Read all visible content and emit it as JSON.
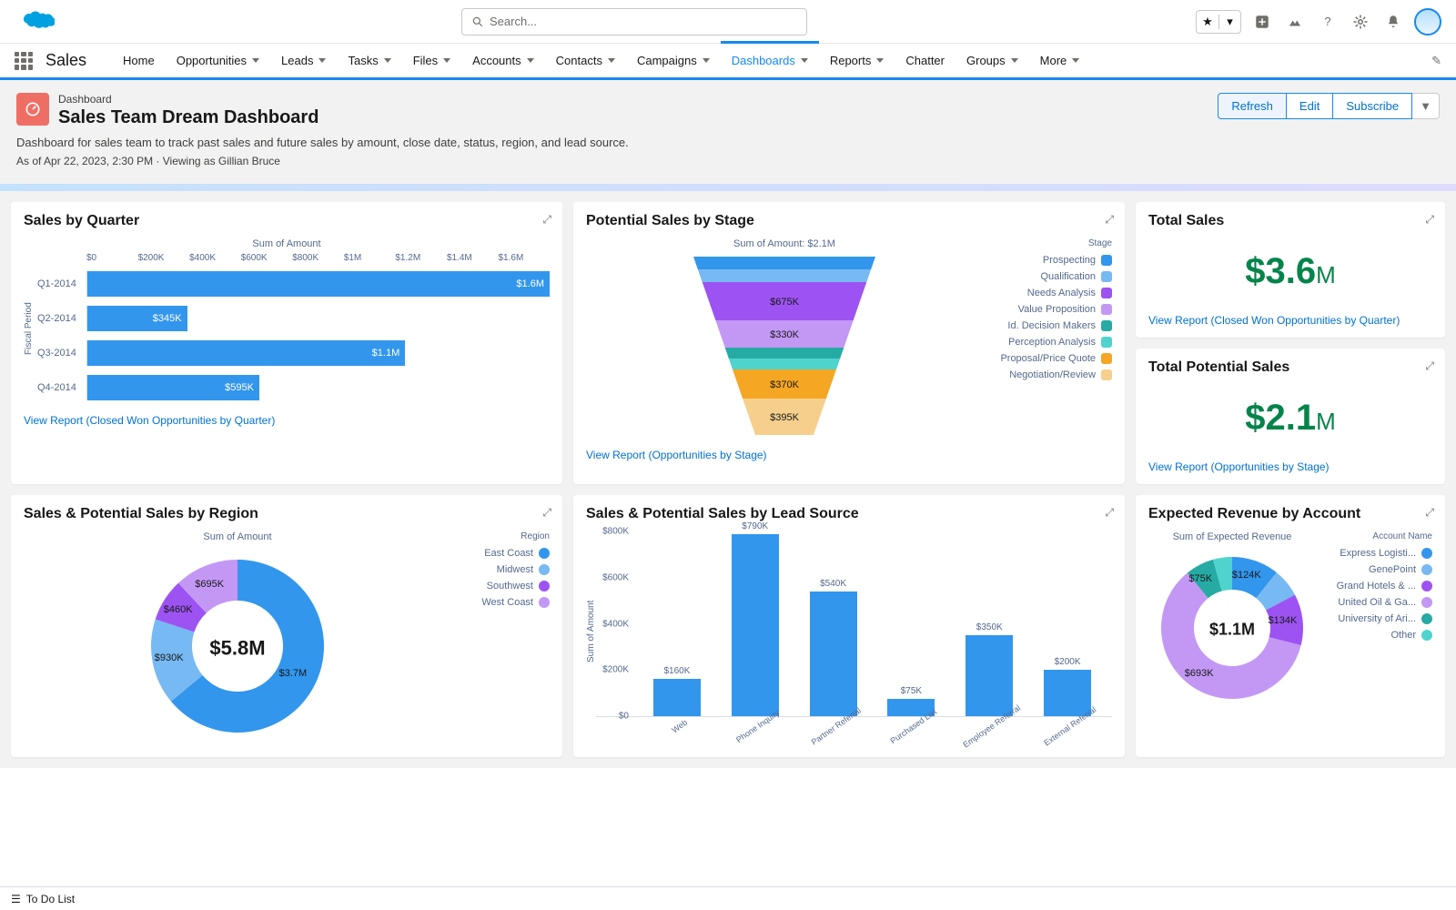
{
  "search_placeholder": "Search...",
  "app_name": "Sales",
  "nav": {
    "items": [
      "Home",
      "Opportunities",
      "Leads",
      "Tasks",
      "Files",
      "Accounts",
      "Contacts",
      "Campaigns",
      "Dashboards",
      "Reports",
      "Chatter",
      "Groups",
      "More"
    ],
    "has_chevron": [
      false,
      true,
      true,
      true,
      true,
      true,
      true,
      true,
      true,
      true,
      false,
      true,
      true
    ],
    "active_index": 8
  },
  "page": {
    "label": "Dashboard",
    "title": "Sales Team Dream Dashboard",
    "description": "Dashboard for sales team to track past sales and future sales by amount, close date, status, region, and lead source.",
    "meta": "As of Apr 22, 2023, 2:30 PM · Viewing as Gillian Bruce",
    "actions": [
      "Refresh",
      "Edit",
      "Subscribe"
    ]
  },
  "colors": {
    "brand_blue": "#1589ee",
    "link": "#0070d2",
    "green": "#04844b",
    "header_bg": "#f3f2f2",
    "icon_bg": "#ef6e64"
  },
  "card1": {
    "title": "Sales by Quarter",
    "axis_title": "Sum of Amount",
    "y_axis_label": "Fiscal Period",
    "view_report": "View Report (Closed Won Opportunities by Quarter)",
    "xticks": [
      "$0",
      "$200K",
      "$400K",
      "$600K",
      "$800K",
      "$1M",
      "$1.2M",
      "$1.4M",
      "$1.6M"
    ],
    "xmax": 1600,
    "bar_color": "#3296ed",
    "bars": [
      {
        "cat": "Q1-2014",
        "val": 1600,
        "label": "$1.6M"
      },
      {
        "cat": "Q2-2014",
        "val": 345,
        "label": "$345K"
      },
      {
        "cat": "Q3-2014",
        "val": 1100,
        "label": "$1.1M"
      },
      {
        "cat": "Q4-2014",
        "val": 595,
        "label": "$595K"
      }
    ]
  },
  "card2": {
    "title": "Potential Sales by Stage",
    "subtitle": "Sum of Amount: $2.1M",
    "view_report": "View Report (Opportunities by Stage)",
    "legend_title": "Stage",
    "segments": [
      {
        "label": "Prospecting",
        "color": "#3296ed",
        "value": ""
      },
      {
        "label": "Qualification",
        "color": "#77b9f2",
        "value": ""
      },
      {
        "label": "Needs Analysis",
        "color": "#9d53f2",
        "value": "$675K"
      },
      {
        "label": "Value Proposition",
        "color": "#c398f5",
        "value": "$330K"
      },
      {
        "label": "Id. Decision Makers",
        "color": "#26aba4",
        "value": ""
      },
      {
        "label": "Perception Analysis",
        "color": "#4ed4cd",
        "value": ""
      },
      {
        "label": "Proposal/Price Quote",
        "color": "#f5a623",
        "value": "$370K"
      },
      {
        "label": "Negotiation/Review",
        "color": "#f6cf8c",
        "value": "$395K"
      }
    ]
  },
  "card3": {
    "title": "Total Sales",
    "value": "$3.6",
    "suffix": "M",
    "view_report": "View Report (Closed Won Opportunities by Quarter)"
  },
  "card4": {
    "title": "Total Potential Sales",
    "value": "$2.1",
    "suffix": "M",
    "view_report": "View Report (Opportunities by Stage)"
  },
  "card5": {
    "title": "Sales & Potential Sales by Region",
    "subtitle": "Sum of Amount",
    "legend_title": "Region",
    "center": "$5.8M",
    "segments": [
      {
        "label": "East Coast",
        "color": "#3296ed",
        "value": 3700,
        "display": "$3.7M"
      },
      {
        "label": "Midwest",
        "color": "#77b9f2",
        "value": 930,
        "display": "$930K"
      },
      {
        "label": "Southwest",
        "color": "#9d53f2",
        "value": 460,
        "display": "$460K"
      },
      {
        "label": "West Coast",
        "color": "#c398f5",
        "value": 695,
        "display": "$695K"
      }
    ]
  },
  "card6": {
    "title": "Sales & Potential Sales by Lead Source",
    "y_axis_label": "Sum of Amount",
    "bar_color": "#3296ed",
    "yticks": [
      "$0",
      "$200K",
      "$400K",
      "$600K",
      "$800K"
    ],
    "ymax": 800,
    "bars": [
      {
        "cat": "Web",
        "val": 160,
        "label": "$160K"
      },
      {
        "cat": "Phone Inquiry",
        "val": 790,
        "label": "$790K"
      },
      {
        "cat": "Partner Referral",
        "val": 540,
        "label": "$540K"
      },
      {
        "cat": "Purchased List",
        "val": 75,
        "label": "$75K"
      },
      {
        "cat": "Employee Referral",
        "val": 350,
        "label": "$350K"
      },
      {
        "cat": "External Referral",
        "val": 200,
        "label": "$200K"
      }
    ]
  },
  "card7": {
    "title": "Expected Revenue by Account",
    "subtitle": "Sum of Expected Revenue",
    "legend_title": "Account Name",
    "center": "$1.1M",
    "segments": [
      {
        "label": "Express Logisti...",
        "color": "#3296ed",
        "value": 124,
        "display": "$124K"
      },
      {
        "label": "GenePoint",
        "color": "#77b9f2",
        "value": 75,
        "display": ""
      },
      {
        "label": "Grand Hotels & ...",
        "color": "#9d53f2",
        "value": 134,
        "display": "$134K"
      },
      {
        "label": "United Oil & Ga...",
        "color": "#c398f5",
        "value": 693,
        "display": "$693K"
      },
      {
        "label": "University of Ari...",
        "color": "#26aba4",
        "value": 75,
        "display": "$75K"
      },
      {
        "label": "Other",
        "color": "#4ed4cd",
        "value": 50,
        "display": ""
      }
    ]
  },
  "footer": "To Do List"
}
